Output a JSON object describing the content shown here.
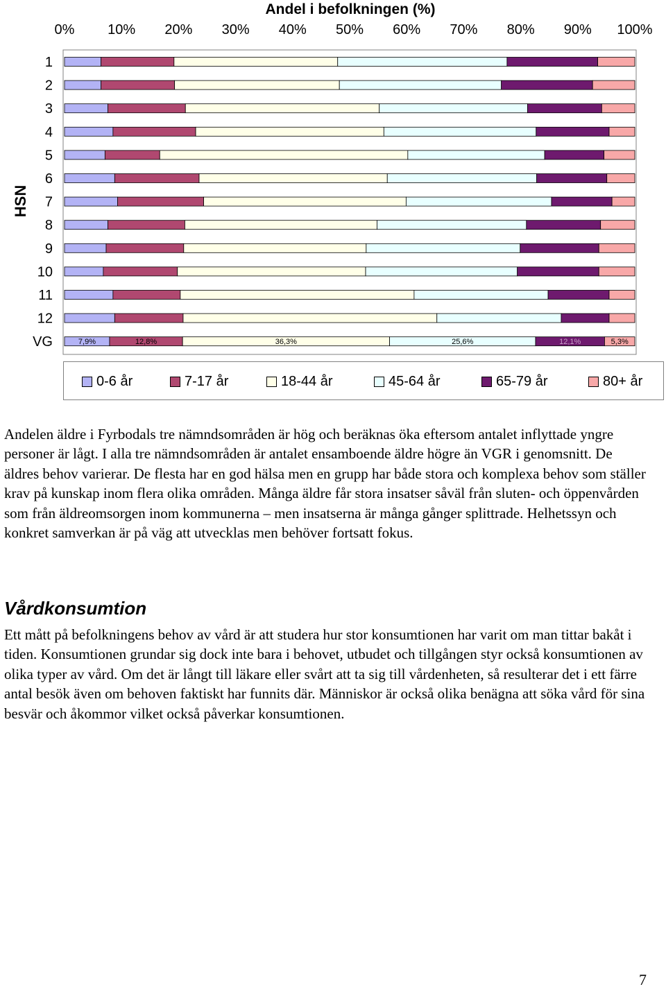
{
  "chart_data": {
    "type": "bar",
    "orientation": "horizontal-stacked-100",
    "title": "Andel i befolkningen (%)",
    "y_axis_label": "HSN",
    "x_tick_labels": [
      "0%",
      "10%",
      "20%",
      "30%",
      "40%",
      "50%",
      "60%",
      "70%",
      "80%",
      "90%",
      "100%"
    ],
    "xlim": [
      0,
      100
    ],
    "categories": [
      "1",
      "2",
      "3",
      "4",
      "5",
      "6",
      "7",
      "8",
      "9",
      "10",
      "11",
      "12",
      "VG"
    ],
    "series": [
      {
        "name": "0-6 år",
        "color": "#b3b3f5",
        "values": [
          6.4,
          6.4,
          7.6,
          8.5,
          7.1,
          8.8,
          9.3,
          7.6,
          7.3,
          6.8,
          8.5,
          8.8,
          7.9
        ]
      },
      {
        "name": "7-17 år",
        "color": "#b04870",
        "values": [
          12.8,
          12.9,
          13.6,
          14.5,
          9.6,
          14.8,
          15.1,
          13.5,
          13.6,
          13.0,
          11.8,
          12.0,
          12.8
        ]
      },
      {
        "name": "18-44 år",
        "color": "#ffffe8",
        "values": [
          28.7,
          28.9,
          34.0,
          33.0,
          43.5,
          33.0,
          35.5,
          33.7,
          32.0,
          33.0,
          41.0,
          44.5,
          36.3
        ]
      },
      {
        "name": "45-64 år",
        "color": "#e8ffff",
        "values": [
          29.7,
          28.4,
          26.0,
          26.7,
          24.0,
          26.2,
          25.5,
          26.2,
          27.0,
          26.6,
          23.5,
          21.8,
          25.6
        ]
      },
      {
        "name": "65-79 år",
        "color": "#6e1a6e",
        "values": [
          15.9,
          16.0,
          13.0,
          12.8,
          10.4,
          12.3,
          10.6,
          13.0,
          13.8,
          14.3,
          10.7,
          8.4,
          12.1
        ]
      },
      {
        "name": "80+ år",
        "color": "#f8a8a8",
        "values": [
          6.5,
          7.4,
          5.8,
          4.5,
          5.4,
          4.9,
          4.0,
          6.0,
          6.3,
          6.3,
          4.5,
          4.5,
          5.3
        ]
      }
    ],
    "data_labels_row": "VG",
    "data_labels": [
      "7,9%",
      "12,8%",
      "36,3%",
      "25,6%",
      "12,1%",
      "5,3%"
    ],
    "legend_position": "bottom",
    "grid": false
  },
  "paragraph_1": "Andelen äldre i Fyrbodals tre nämndsområden är hög och beräknas öka eftersom antalet inflyttade yngre personer är lågt. I alla tre nämndsområden är antalet ensamboende äldre högre än VGR i genomsnitt. De äldres behov varierar. De flesta har en god hälsa men en grupp har både stora och komplexa behov som ställer krav på kunskap inom flera olika områden. Många äldre får stora insatser såväl från sluten- och öppenvården som från äldreomsorgen inom kommunerna – men insatserna är många gånger splittrade. Helhetssyn och konkret samverkan är på väg att utvecklas men behöver fortsatt fokus.",
  "heading": "Vårdkonsumtion",
  "paragraph_2": "Ett mått på befolkningens behov av vård är att studera hur stor konsumtionen har varit om man tittar bakåt i tiden. Konsumtionen grundar sig dock inte bara i behovet, utbudet och tillgången styr också konsumtionen av olika typer av vård. Om det är långt till läkare eller svårt att ta sig till vårdenheten, så resulterar det i ett färre antal besök även om behoven faktiskt har funnits där. Människor är också olika benägna att söka vård för sina besvär och åkommor vilket också påverkar konsumtionen.",
  "page_number": "7"
}
